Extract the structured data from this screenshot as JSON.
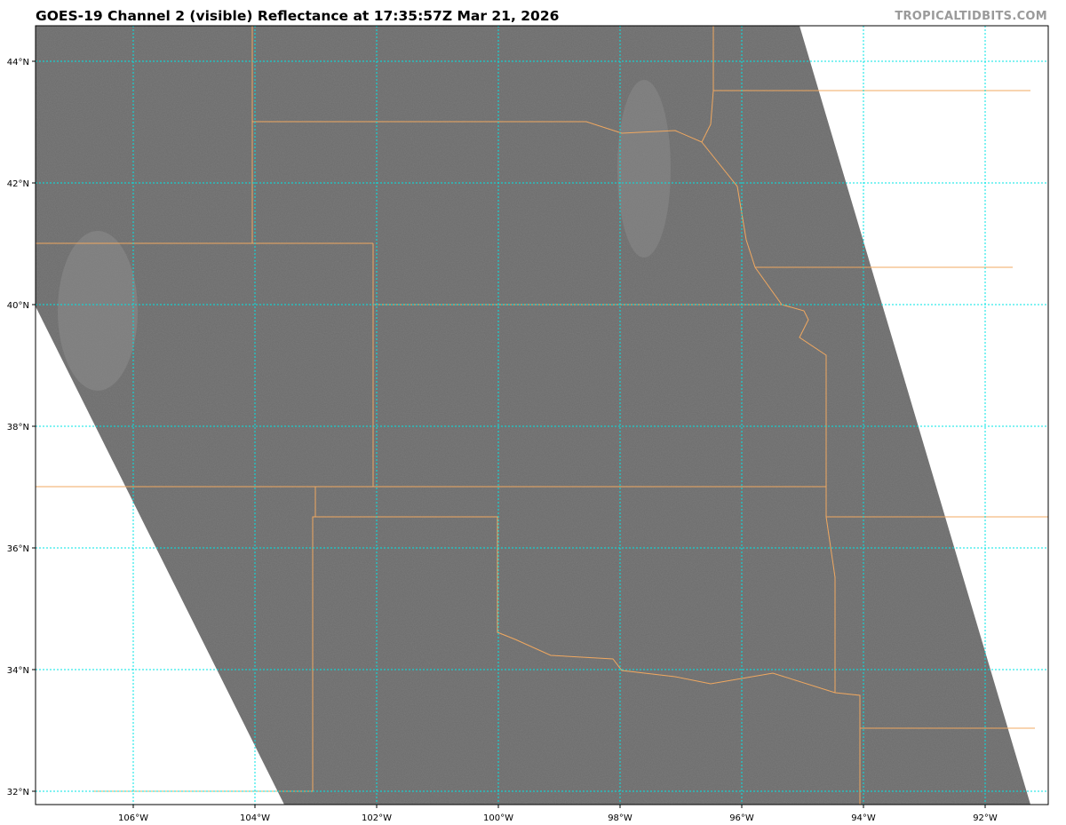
{
  "header": {
    "title": "GOES-19 Channel 2 (visible) Reflectance at 17:35:57Z Mar 21, 2026",
    "watermark": "TROPICALTIDBITS.COM"
  },
  "map": {
    "imagery_color": "#6b6b6b",
    "border_color": "#f0a860",
    "grid_color": "#00e5e5",
    "lat_labels": [
      "44°N",
      "42°N",
      "40°N",
      "38°N",
      "36°N",
      "34°N",
      "32°N"
    ],
    "lon_labels": [
      "106°W",
      "104°W",
      "102°W",
      "100°W",
      "98°W",
      "96°W",
      "94°W",
      "92°W"
    ]
  }
}
